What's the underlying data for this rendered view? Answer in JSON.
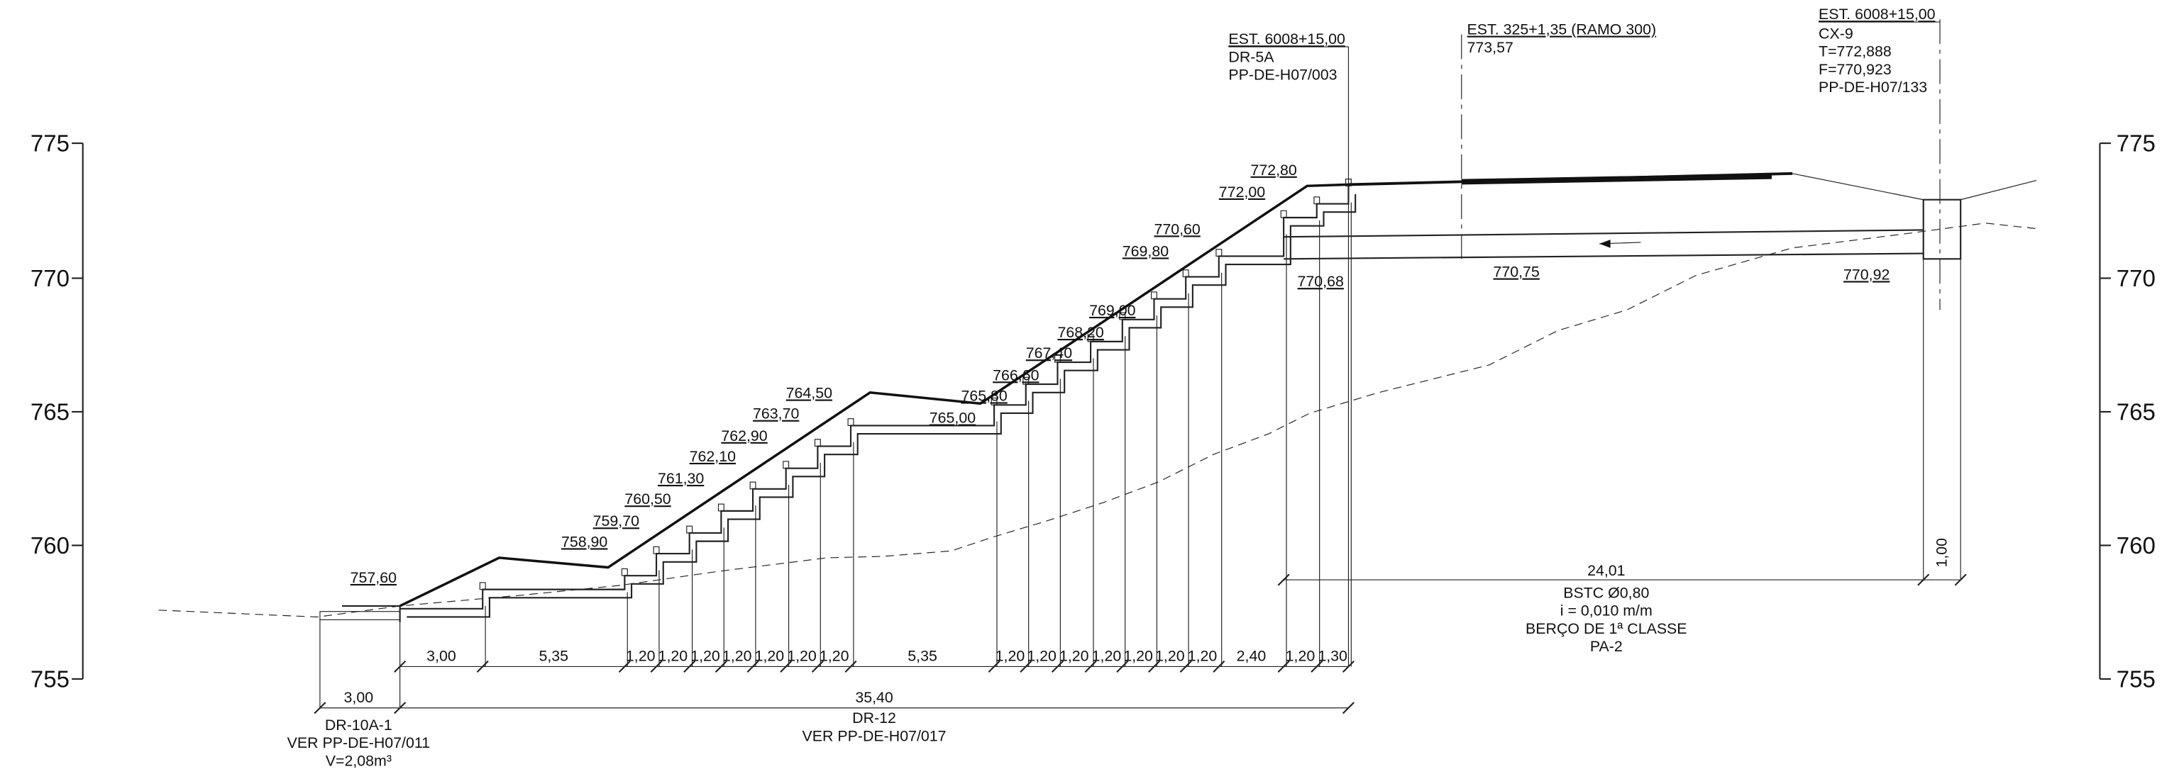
{
  "left_axis": {
    "labels": [
      "775",
      "770",
      "765",
      "760",
      "755"
    ]
  },
  "right_axis": {
    "labels": [
      "775",
      "770",
      "765",
      "760",
      "755"
    ]
  },
  "elevations": [
    "757,60",
    "758,90",
    "759,70",
    "760,50",
    "761,30",
    "762,10",
    "762,90",
    "763,70",
    "764,50",
    "765,00",
    "765,80",
    "766,60",
    "767,40",
    "768,20",
    "769,00",
    "769,80",
    "770,60",
    "772,00",
    "772,80",
    "770,68",
    "770,75",
    "770,92"
  ],
  "annotations": {
    "inlet": [
      "EST. 6008+15,00",
      "DR-5A",
      "PP-DE-H07/003"
    ],
    "ramp": [
      "EST. 325+1,35 (RAMO 300)",
      "773,57"
    ],
    "box": [
      "EST. 6008+15,00",
      "CX-9",
      "T=772,888",
      "F=770,923",
      "PP-DE-H07/133"
    ]
  },
  "dimensions_row1": [
    "3,00",
    "5,35",
    "1,20",
    "1,20",
    "1,20",
    "1,20",
    "1,20",
    "1,20",
    "1,20",
    "5,35",
    "1,20",
    "1,20",
    "1,20",
    "1,20",
    "1,20",
    "1,20",
    "1,20",
    "2,40",
    "1,20",
    "1,30"
  ],
  "dimensions_row2": [
    "3,00",
    "35,40"
  ],
  "notes_left": [
    "DR-10A-1",
    "VER PP-DE-H07/011",
    "V=2,08m³"
  ],
  "notes_center": [
    "DR-12",
    "VER PP-DE-H07/017"
  ],
  "pipe": [
    "24,01",
    "BSTC Ø0,80",
    "i = 0,010 m/m",
    "BERÇO DE 1ª CLASSE",
    "PA-2"
  ],
  "box_depth": "1,00"
}
